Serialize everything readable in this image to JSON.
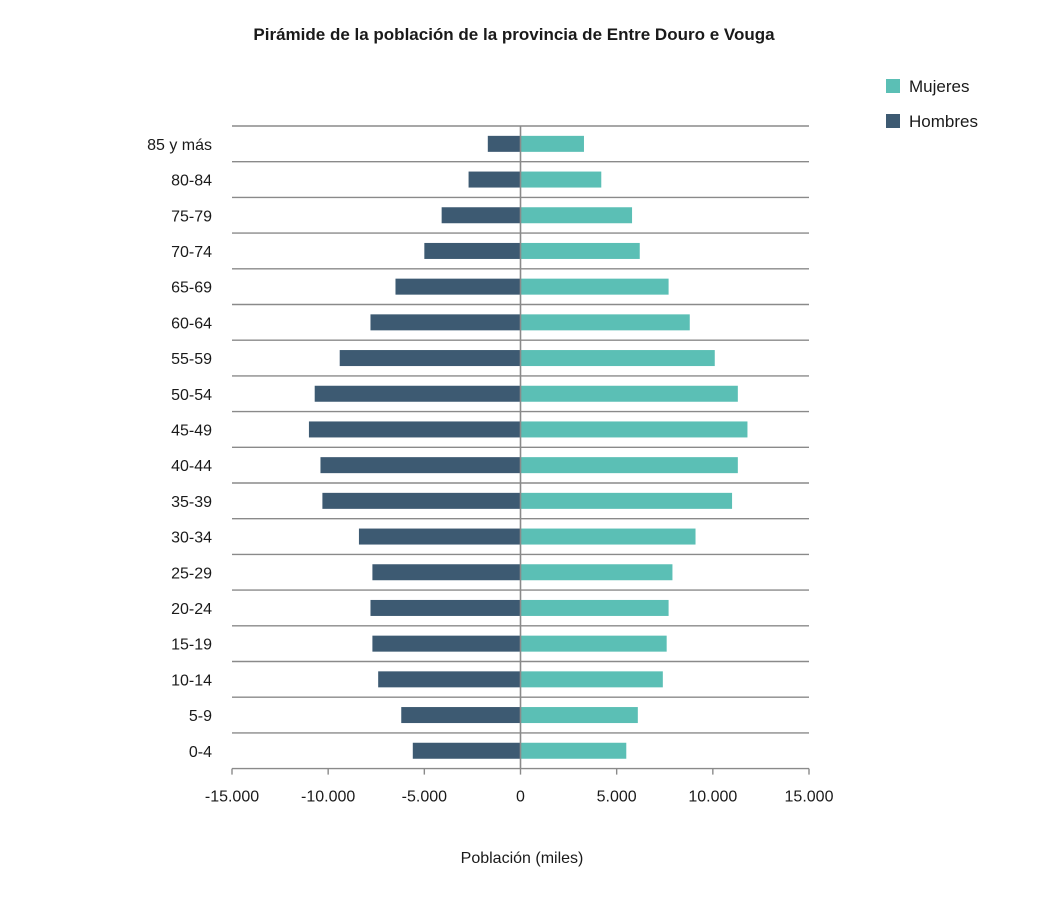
{
  "chart_data": {
    "type": "bar",
    "orientation": "horizontal",
    "title": "Pirámide de la población de la provincia de Entre Douro e Vouga",
    "xlabel": "Población (miles)",
    "ylabel": "",
    "xlim": [
      -15000,
      15000
    ],
    "x_ticks": [
      -15000,
      -10000,
      -5000,
      0,
      5000,
      10000,
      15000
    ],
    "x_tick_labels": [
      "-15.000",
      "-10.000",
      "-5.000",
      "0",
      "5.000",
      "10.000",
      "15.000"
    ],
    "grid": "horizontal",
    "legend_position": "top-right",
    "categories": [
      "85 y más",
      "80-84",
      "75-79",
      "70-74",
      "65-69",
      "60-64",
      "55-59",
      "50-54",
      "45-49",
      "40-44",
      "35-39",
      "30-34",
      "25-29",
      "20-24",
      "15-19",
      "10-14",
      "5-9",
      "0-4"
    ],
    "series": [
      {
        "name": "Mujeres",
        "color": "#5bbfb5",
        "values": [
          3300,
          4200,
          5800,
          6200,
          7700,
          8800,
          10100,
          11300,
          11800,
          11300,
          11000,
          9100,
          7900,
          7700,
          7600,
          7400,
          6100,
          5500
        ]
      },
      {
        "name": "Hombres",
        "color": "#3d5a72",
        "values": [
          -1700,
          -2700,
          -4100,
          -5000,
          -6500,
          -7800,
          -9400,
          -10700,
          -11000,
          -10400,
          -10300,
          -8400,
          -7700,
          -7800,
          -7700,
          -7400,
          -6200,
          -5600
        ]
      }
    ]
  }
}
